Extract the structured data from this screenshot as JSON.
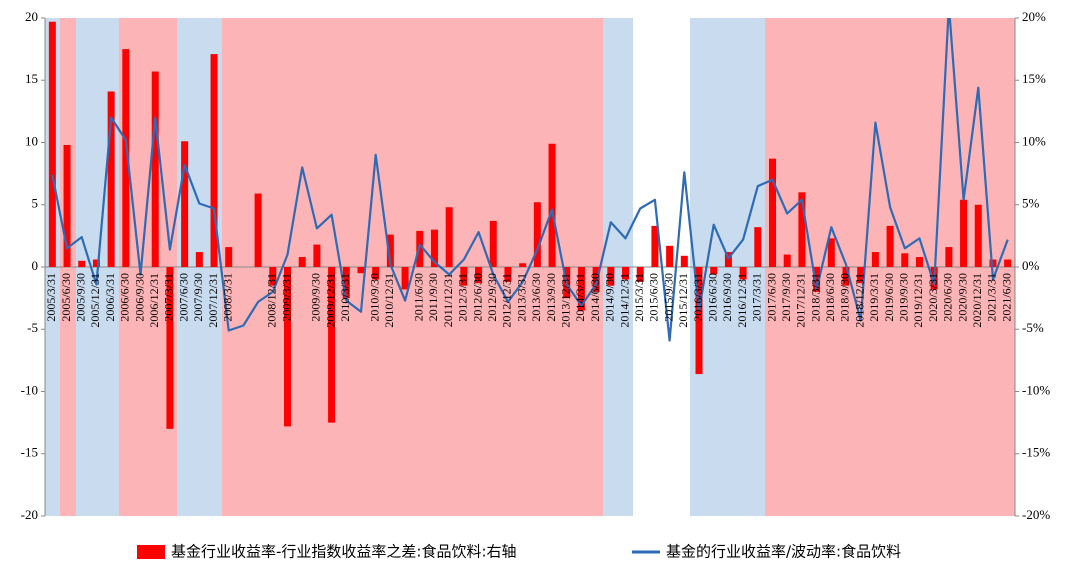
{
  "chart_data": {
    "type": "bar",
    "categories": [
      "2005/3/31",
      "2005/6/30",
      "2005/9/30",
      "2005/12/31",
      "2006/3/31",
      "2006/6/30",
      "2006/9/30",
      "2006/12/31",
      "2007/3/31",
      "2007/6/30",
      "2007/9/30",
      "2007/12/31",
      "2008/3/31",
      null,
      null,
      "2008/12/31",
      "2009/3/31",
      null,
      "2009/9/30",
      "2009/12/31",
      "2010/3/31",
      null,
      "2010/9/30",
      "2010/12/31",
      null,
      "2011/6/30",
      "2011/9/30",
      "2011/12/31",
      "2012/3/31",
      "2012/6/30",
      "2012/9/30",
      "2012/12/31",
      "2013/3/31",
      "2013/6/30",
      "2013/9/30",
      "2013/12/31",
      "2014/3/31",
      "2014/6/30",
      "2014/9/30",
      "2014/12/31",
      "2015/3/31",
      "2015/6/30",
      "2015/9/30",
      "2015/12/31",
      "2016/3/31",
      "2016/6/30",
      "2016/9/30",
      "2016/12/31",
      "2017/3/31",
      "2017/6/30",
      "2017/9/30",
      "2017/12/31",
      "2018/3/31",
      "2018/6/30",
      "2018/9/30",
      "2018/12/31",
      "2019/3/31",
      "2019/6/30",
      "2019/9/30",
      "2019/12/31",
      "2020/3/31",
      "2020/6/30",
      "2020/9/30",
      "2020/12/31",
      "2021/3/31",
      "2021/6/30"
    ],
    "series": [
      {
        "name": "基金行业收益率-行业指数收益率之差:食品饮料:右轴",
        "type": "bar",
        "axis": "y2",
        "color": "#ff0000",
        "values": [
          19.7,
          9.8,
          0.5,
          0.6,
          14.1,
          17.5,
          0,
          15.7,
          -13,
          10.1,
          1.2,
          17.1,
          1.6,
          0,
          5.9,
          -1.5,
          -12.8,
          0.8,
          1.8,
          -12.5,
          -2.5,
          -0.5,
          -1.0,
          2.6,
          -1.8,
          2.9,
          3.0,
          4.8,
          -1.5,
          -1.3,
          3.7,
          -1.2,
          0.3,
          5.2,
          9.9,
          -2.5,
          -3.5,
          -2.0,
          -1.5,
          -1.0,
          -1.2,
          3.3,
          1.7,
          0.9,
          -8.6,
          -0.6,
          1.2,
          -1.0,
          3.2,
          8.7,
          1.0,
          6.0,
          -2.0,
          2.3,
          -1.5,
          -1.3,
          1.2,
          3.3,
          1.1,
          0.8,
          -1.8,
          1.6,
          5.4,
          5.0,
          0.6,
          0.6
        ]
      },
      {
        "name": "基金的行业收益率/波动率:食品饮料",
        "type": "line",
        "color": "#2e6bb4",
        "values": [
          7.4,
          1.5,
          2.4,
          -1.4,
          12.0,
          10.2,
          -0.6,
          12.0,
          1.4,
          8.2,
          5.1,
          4.7,
          -5.1,
          -4.7,
          -2.8,
          -2.0,
          1.0,
          8.0,
          3.1,
          4.2,
          -2.7,
          -3.6,
          9.0,
          0.2,
          -2.7,
          1.8,
          0.4,
          -0.6,
          0.6,
          2.8,
          -0.6,
          -2.8,
          -1.2,
          1.4,
          4.6,
          -1.4,
          -3.1,
          -1.4,
          3.6,
          2.3,
          4.7,
          5.4,
          -5.9,
          7.6,
          -3.5,
          3.4,
          0.7,
          2.2,
          6.5,
          7.0,
          4.3,
          5.4,
          -1.8,
          3.2,
          0.2,
          -4.3,
          11.6,
          4.8,
          1.5,
          2.3,
          -1.4,
          21.0,
          5.4,
          14.4,
          -1.0,
          2.2
        ]
      }
    ],
    "ylim": [
      -20,
      20
    ],
    "yticks": [
      -20,
      -15,
      -10,
      -5,
      0,
      5,
      10,
      15,
      20
    ],
    "y2lim": [
      -20,
      20
    ],
    "y2ticks": [
      {
        "value": -20,
        "label": "-20%"
      },
      {
        "value": -15,
        "label": "-15%"
      },
      {
        "value": -10,
        "label": "-10%"
      },
      {
        "value": -5,
        "label": "-5%"
      },
      {
        "value": 0,
        "label": "0%"
      },
      {
        "value": 5,
        "label": "5%"
      },
      {
        "value": 10,
        "label": "10%"
      },
      {
        "value": 15,
        "label": "15%"
      },
      {
        "value": 20,
        "label": "20%"
      }
    ],
    "legend": "bottom"
  }
}
